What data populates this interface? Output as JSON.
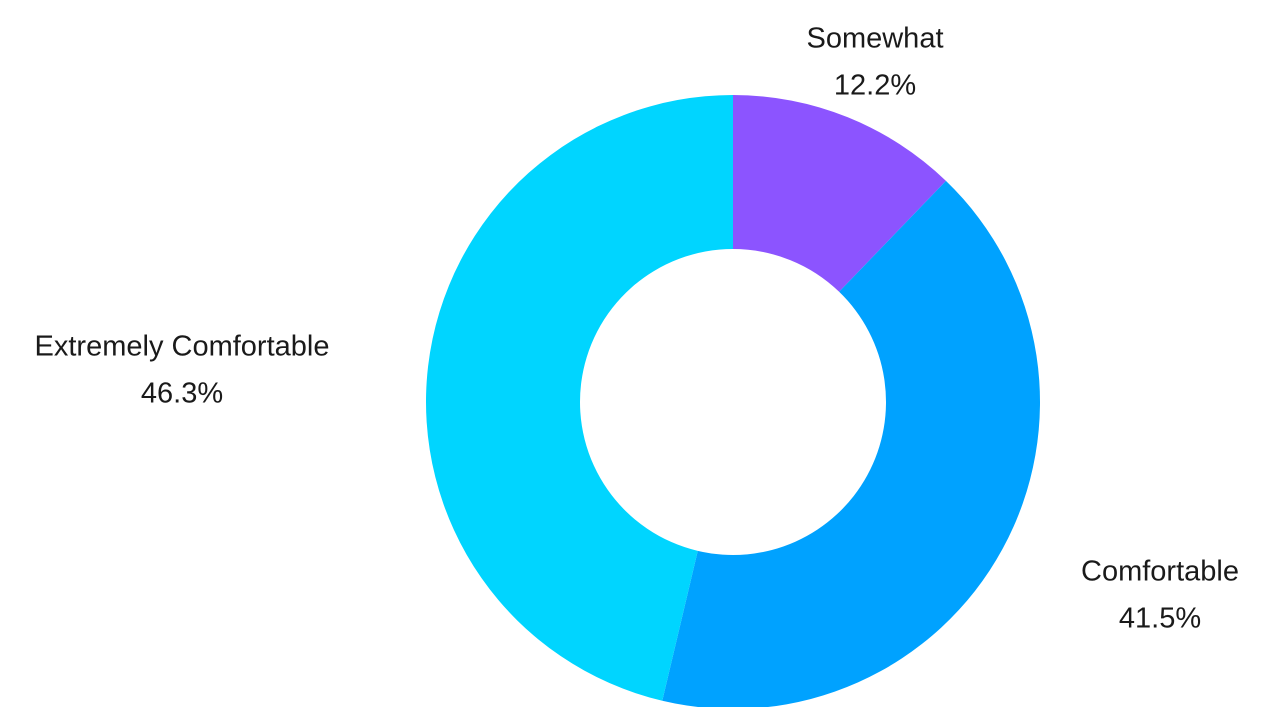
{
  "chart_data": {
    "type": "pie",
    "variant": "donut",
    "title": "",
    "legend": "none",
    "slices": [
      {
        "name": "Somewhat",
        "value": 12.2,
        "label": "12.2%",
        "color": "#8c54ff"
      },
      {
        "name": "Comfortable",
        "value": 41.5,
        "label": "41.5%",
        "color": "#00a2ff"
      },
      {
        "name": "Extremely Comfortable",
        "value": 46.3,
        "label": "46.3%",
        "color": "#00d5ff"
      }
    ]
  }
}
